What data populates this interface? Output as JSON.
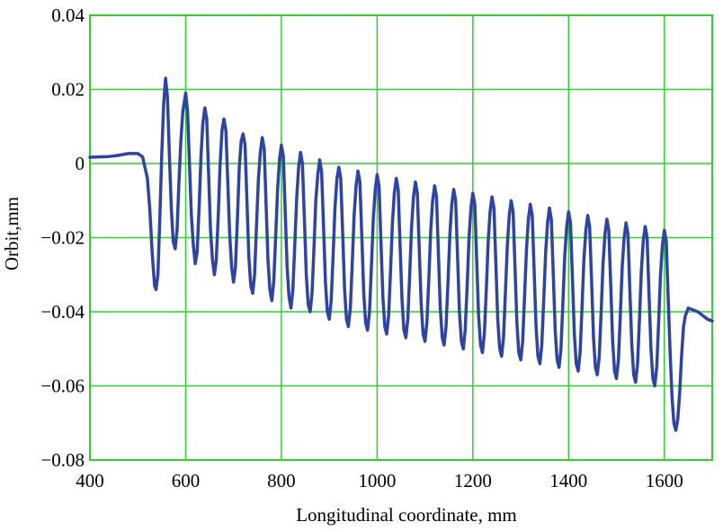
{
  "chart_data": {
    "type": "line",
    "title": "",
    "xlabel": "Longitudinal coordinate, mm",
    "ylabel": "Orbit,mm",
    "xlim": [
      400,
      1700
    ],
    "ylim": [
      -0.08,
      0.04
    ],
    "x_ticks": [
      400,
      600,
      800,
      1000,
      1200,
      1400,
      1600
    ],
    "x_tick_labels": [
      "400",
      "600",
      "800",
      "1000",
      "1200",
      "1400",
      "1600"
    ],
    "y_ticks": [
      0.04,
      0.02,
      0,
      -0.02,
      -0.04,
      -0.06,
      -0.08
    ],
    "y_tick_labels": [
      "0.04",
      "0.02",
      "0",
      "−0.02",
      "−0.04",
      "−0.06",
      "−0.08"
    ],
    "grid": true,
    "colors": {
      "line": "#2f44a0",
      "grid": "#33cc33",
      "frame": "#33cc33"
    },
    "series": [
      {
        "name": "",
        "values": [
          [
            400,
            0.0017
          ],
          [
            440,
            0.0019
          ],
          [
            460,
            0.0022
          ],
          [
            480,
            0.0027
          ],
          [
            500,
            0.0027
          ],
          [
            510,
            0.0018
          ],
          [
            520,
            -0.004
          ],
          [
            525,
            -0.012
          ],
          [
            530,
            -0.024
          ],
          [
            535,
            -0.033
          ],
          [
            538,
            -0.034
          ],
          [
            542,
            -0.03
          ],
          [
            546,
            -0.015
          ],
          [
            550,
            0.002
          ],
          [
            554,
            0.016
          ],
          [
            558,
            0.023
          ],
          [
            562,
            0.018
          ],
          [
            566,
            0.002
          ],
          [
            570,
            -0.012
          ],
          [
            574,
            -0.021
          ],
          [
            578,
            -0.023
          ],
          [
            582,
            -0.018
          ],
          [
            586,
            -0.005
          ],
          [
            590,
            0.006
          ],
          [
            594,
            0.014
          ],
          [
            600,
            0.019
          ],
          [
            604,
            0.014
          ],
          [
            608,
            0.0
          ],
          [
            612,
            -0.014
          ],
          [
            616,
            -0.022
          ],
          [
            620,
            -0.027
          ],
          [
            624,
            -0.024
          ],
          [
            628,
            -0.012
          ],
          [
            632,
            0.002
          ],
          [
            636,
            0.011
          ],
          [
            640,
            0.015
          ],
          [
            644,
            0.012
          ],
          [
            648,
            -0.003
          ],
          [
            652,
            -0.018
          ],
          [
            656,
            -0.026
          ],
          [
            660,
            -0.03
          ],
          [
            664,
            -0.026
          ],
          [
            668,
            -0.014
          ],
          [
            672,
            0.0
          ],
          [
            676,
            0.009
          ],
          [
            680,
            0.012
          ],
          [
            684,
            0.009
          ],
          [
            688,
            -0.005
          ],
          [
            692,
            -0.019
          ],
          [
            696,
            -0.028
          ],
          [
            700,
            -0.032
          ],
          [
            704,
            -0.028
          ],
          [
            708,
            -0.015
          ],
          [
            712,
            -0.001
          ],
          [
            716,
            0.006
          ],
          [
            720,
            0.008
          ],
          [
            724,
            0.005
          ],
          [
            728,
            -0.01
          ],
          [
            732,
            -0.025
          ],
          [
            736,
            -0.033
          ],
          [
            740,
            -0.035
          ],
          [
            744,
            -0.03
          ],
          [
            748,
            -0.017
          ],
          [
            752,
            -0.004
          ],
          [
            756,
            0.003
          ],
          [
            760,
            0.007
          ],
          [
            764,
            0.004
          ],
          [
            768,
            -0.011
          ],
          [
            772,
            -0.026
          ],
          [
            776,
            -0.034
          ],
          [
            780,
            -0.037
          ],
          [
            784,
            -0.032
          ],
          [
            788,
            -0.02
          ],
          [
            792,
            -0.007
          ],
          [
            796,
            0.001
          ],
          [
            800,
            0.005
          ],
          [
            804,
            0.002
          ],
          [
            808,
            -0.013
          ],
          [
            812,
            -0.028
          ],
          [
            816,
            -0.036
          ],
          [
            820,
            -0.039
          ],
          [
            824,
            -0.034
          ],
          [
            828,
            -0.022
          ],
          [
            832,
            -0.009
          ],
          [
            836,
            -0.001
          ],
          [
            840,
            0.003
          ],
          [
            844,
            0.0
          ],
          [
            848,
            -0.015
          ],
          [
            852,
            -0.03
          ],
          [
            856,
            -0.038
          ],
          [
            860,
            -0.04
          ],
          [
            864,
            -0.035
          ],
          [
            868,
            -0.023
          ],
          [
            872,
            -0.01
          ],
          [
            876,
            -0.003
          ],
          [
            880,
            0.001
          ],
          [
            884,
            -0.002
          ],
          [
            888,
            -0.017
          ],
          [
            892,
            -0.032
          ],
          [
            896,
            -0.04
          ],
          [
            900,
            -0.042
          ],
          [
            904,
            -0.037
          ],
          [
            908,
            -0.025
          ],
          [
            912,
            -0.012
          ],
          [
            916,
            -0.004
          ],
          [
            920,
            -0.001
          ],
          [
            924,
            -0.004
          ],
          [
            928,
            -0.019
          ],
          [
            932,
            -0.034
          ],
          [
            936,
            -0.042
          ],
          [
            940,
            -0.044
          ],
          [
            944,
            -0.039
          ],
          [
            948,
            -0.027
          ],
          [
            952,
            -0.014
          ],
          [
            956,
            -0.006
          ],
          [
            960,
            -0.002
          ],
          [
            964,
            -0.005
          ],
          [
            968,
            -0.02
          ],
          [
            972,
            -0.035
          ],
          [
            976,
            -0.043
          ],
          [
            980,
            -0.045
          ],
          [
            984,
            -0.04
          ],
          [
            988,
            -0.028
          ],
          [
            992,
            -0.015
          ],
          [
            996,
            -0.007
          ],
          [
            1000,
            -0.003
          ],
          [
            1004,
            -0.006
          ],
          [
            1008,
            -0.021
          ],
          [
            1012,
            -0.036
          ],
          [
            1016,
            -0.044
          ],
          [
            1020,
            -0.046
          ],
          [
            1024,
            -0.041
          ],
          [
            1028,
            -0.029
          ],
          [
            1032,
            -0.016
          ],
          [
            1036,
            -0.008
          ],
          [
            1040,
            -0.004
          ],
          [
            1044,
            -0.007
          ],
          [
            1048,
            -0.022
          ],
          [
            1052,
            -0.037
          ],
          [
            1056,
            -0.045
          ],
          [
            1060,
            -0.047
          ],
          [
            1064,
            -0.042
          ],
          [
            1068,
            -0.03
          ],
          [
            1072,
            -0.017
          ],
          [
            1076,
            -0.009
          ],
          [
            1080,
            -0.005
          ],
          [
            1084,
            -0.008
          ],
          [
            1088,
            -0.023
          ],
          [
            1092,
            -0.038
          ],
          [
            1096,
            -0.046
          ],
          [
            1100,
            -0.048
          ],
          [
            1104,
            -0.043
          ],
          [
            1108,
            -0.031
          ],
          [
            1112,
            -0.018
          ],
          [
            1116,
            -0.01
          ],
          [
            1120,
            -0.006
          ],
          [
            1124,
            -0.009
          ],
          [
            1128,
            -0.024
          ],
          [
            1132,
            -0.039
          ],
          [
            1136,
            -0.047
          ],
          [
            1140,
            -0.049
          ],
          [
            1144,
            -0.044
          ],
          [
            1148,
            -0.032
          ],
          [
            1152,
            -0.019
          ],
          [
            1156,
            -0.011
          ],
          [
            1160,
            -0.007
          ],
          [
            1164,
            -0.01
          ],
          [
            1168,
            -0.025
          ],
          [
            1172,
            -0.04
          ],
          [
            1176,
            -0.048
          ],
          [
            1180,
            -0.05
          ],
          [
            1184,
            -0.045
          ],
          [
            1188,
            -0.033
          ],
          [
            1192,
            -0.02
          ],
          [
            1196,
            -0.012
          ],
          [
            1200,
            -0.008
          ],
          [
            1204,
            -0.011
          ],
          [
            1208,
            -0.026
          ],
          [
            1212,
            -0.041
          ],
          [
            1216,
            -0.049
          ],
          [
            1220,
            -0.051
          ],
          [
            1224,
            -0.046
          ],
          [
            1228,
            -0.034
          ],
          [
            1232,
            -0.021
          ],
          [
            1236,
            -0.013
          ],
          [
            1240,
            -0.009
          ],
          [
            1244,
            -0.012
          ],
          [
            1248,
            -0.027
          ],
          [
            1252,
            -0.042
          ],
          [
            1256,
            -0.05
          ],
          [
            1260,
            -0.052
          ],
          [
            1264,
            -0.047
          ],
          [
            1268,
            -0.035
          ],
          [
            1272,
            -0.022
          ],
          [
            1276,
            -0.014
          ],
          [
            1280,
            -0.01
          ],
          [
            1284,
            -0.013
          ],
          [
            1288,
            -0.028
          ],
          [
            1292,
            -0.043
          ],
          [
            1296,
            -0.051
          ],
          [
            1300,
            -0.053
          ],
          [
            1304,
            -0.048
          ],
          [
            1308,
            -0.036
          ],
          [
            1312,
            -0.023
          ],
          [
            1316,
            -0.015
          ],
          [
            1320,
            -0.011
          ],
          [
            1324,
            -0.014
          ],
          [
            1328,
            -0.029
          ],
          [
            1332,
            -0.044
          ],
          [
            1336,
            -0.052
          ],
          [
            1340,
            -0.054
          ],
          [
            1344,
            -0.049
          ],
          [
            1348,
            -0.037
          ],
          [
            1352,
            -0.024
          ],
          [
            1356,
            -0.016
          ],
          [
            1360,
            -0.012
          ],
          [
            1364,
            -0.015
          ],
          [
            1368,
            -0.03
          ],
          [
            1372,
            -0.045
          ],
          [
            1376,
            -0.053
          ],
          [
            1380,
            -0.055
          ],
          [
            1384,
            -0.05
          ],
          [
            1388,
            -0.038
          ],
          [
            1392,
            -0.025
          ],
          [
            1396,
            -0.017
          ],
          [
            1400,
            -0.013
          ],
          [
            1404,
            -0.016
          ],
          [
            1408,
            -0.031
          ],
          [
            1412,
            -0.046
          ],
          [
            1416,
            -0.054
          ],
          [
            1420,
            -0.056
          ],
          [
            1424,
            -0.051
          ],
          [
            1428,
            -0.039
          ],
          [
            1432,
            -0.026
          ],
          [
            1436,
            -0.018
          ],
          [
            1440,
            -0.014
          ],
          [
            1444,
            -0.017
          ],
          [
            1448,
            -0.032
          ],
          [
            1452,
            -0.047
          ],
          [
            1456,
            -0.055
          ],
          [
            1460,
            -0.057
          ],
          [
            1464,
            -0.052
          ],
          [
            1468,
            -0.04
          ],
          [
            1472,
            -0.027
          ],
          [
            1476,
            -0.019
          ],
          [
            1480,
            -0.015
          ],
          [
            1484,
            -0.018
          ],
          [
            1488,
            -0.033
          ],
          [
            1492,
            -0.048
          ],
          [
            1496,
            -0.056
          ],
          [
            1500,
            -0.058
          ],
          [
            1504,
            -0.053
          ],
          [
            1508,
            -0.041
          ],
          [
            1512,
            -0.028
          ],
          [
            1516,
            -0.02
          ],
          [
            1520,
            -0.016
          ],
          [
            1524,
            -0.019
          ],
          [
            1528,
            -0.034
          ],
          [
            1532,
            -0.049
          ],
          [
            1536,
            -0.057
          ],
          [
            1540,
            -0.059
          ],
          [
            1544,
            -0.054
          ],
          [
            1548,
            -0.042
          ],
          [
            1552,
            -0.029
          ],
          [
            1556,
            -0.021
          ],
          [
            1560,
            -0.017
          ],
          [
            1564,
            -0.02
          ],
          [
            1568,
            -0.035
          ],
          [
            1572,
            -0.05
          ],
          [
            1576,
            -0.058
          ],
          [
            1580,
            -0.06
          ],
          [
            1584,
            -0.055
          ],
          [
            1588,
            -0.043
          ],
          [
            1592,
            -0.03
          ],
          [
            1596,
            -0.022
          ],
          [
            1600,
            -0.018
          ],
          [
            1604,
            -0.021
          ],
          [
            1608,
            -0.036
          ],
          [
            1612,
            -0.051
          ],
          [
            1616,
            -0.063
          ],
          [
            1620,
            -0.07
          ],
          [
            1624,
            -0.072
          ],
          [
            1628,
            -0.069
          ],
          [
            1632,
            -0.062
          ],
          [
            1636,
            -0.052
          ],
          [
            1640,
            -0.044
          ],
          [
            1644,
            -0.041
          ],
          [
            1650,
            -0.039
          ],
          [
            1660,
            -0.0395
          ],
          [
            1670,
            -0.04
          ],
          [
            1680,
            -0.041
          ],
          [
            1690,
            -0.042
          ],
          [
            1700,
            -0.0425
          ]
        ]
      }
    ]
  }
}
